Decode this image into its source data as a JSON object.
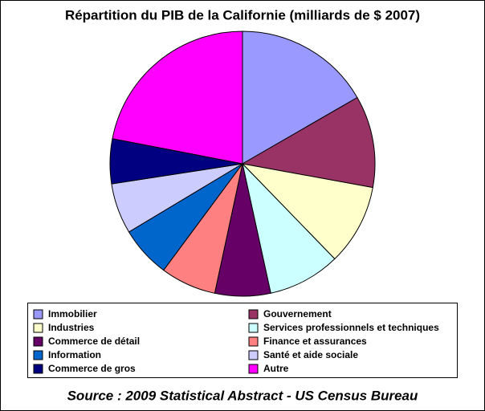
{
  "chart_data": {
    "type": "pie",
    "title": "Répartition du PIB de la Californie (milliards de $ 2007)",
    "categories": [
      "Immobilier",
      "Gouvernement",
      "Industries",
      "Services professionnels et techniques",
      "Commerce de détail",
      "Finance et assurances",
      "Information",
      "Santé et aide sociale",
      "Commerce de gros",
      "Autre"
    ],
    "values": [
      302,
      203,
      179,
      160,
      123,
      123,
      113,
      112,
      99,
      398
    ],
    "colors": [
      "#9999ff",
      "#993366",
      "#ffffcc",
      "#ccffff",
      "#660066",
      "#ff8080",
      "#0066cc",
      "#ccccff",
      "#000080",
      "#ff00ff"
    ],
    "legend": "bottom",
    "source": "Source : 2009 Statistical Abstract - US Census Bureau"
  }
}
